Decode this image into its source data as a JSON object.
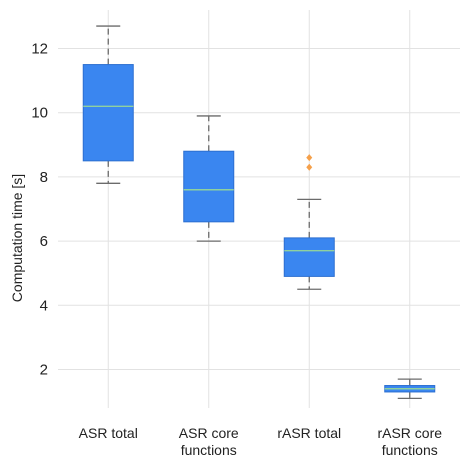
{
  "chart_data": {
    "type": "box",
    "title": "",
    "xlabel": "",
    "ylabel": "Computation time [s]",
    "ylim": [
      0.8,
      13.2
    ],
    "yticks": [
      "2",
      "4",
      "6",
      "8",
      "10",
      "12"
    ],
    "grid": true,
    "categories": [
      [
        "ASR total"
      ],
      [
        "ASR core",
        "functions"
      ],
      [
        "rASR total"
      ],
      [
        "rASR core",
        "functions"
      ]
    ],
    "boxes": [
      {
        "whisker_low": 7.8,
        "q1": 8.5,
        "median": 10.2,
        "q3": 11.5,
        "whisker_high": 12.7,
        "outliers": []
      },
      {
        "whisker_low": 6.0,
        "q1": 6.6,
        "median": 7.6,
        "q3": 8.8,
        "whisker_high": 9.9,
        "outliers": []
      },
      {
        "whisker_low": 4.5,
        "q1": 4.9,
        "median": 5.7,
        "q3": 6.1,
        "whisker_high": 7.3,
        "outliers": [
          8.3,
          8.6
        ]
      },
      {
        "whisker_low": 1.1,
        "q1": 1.3,
        "median": 1.4,
        "q3": 1.5,
        "whisker_high": 1.7,
        "outliers": []
      }
    ],
    "colors": {
      "box": "#3a86f0",
      "box_edge": "#2c6fd0",
      "median": "#8fd19e",
      "whisker": "#6b6b6b",
      "outlier": "#f5a04a",
      "grid": "#e2e2e2"
    }
  }
}
